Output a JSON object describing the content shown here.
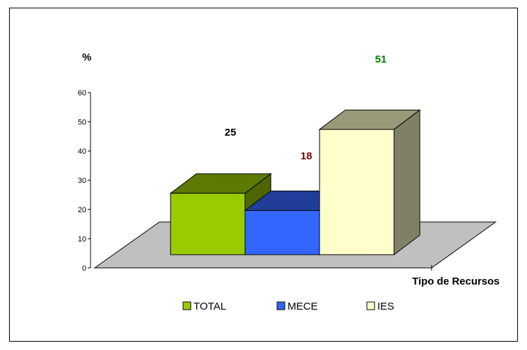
{
  "chart_data": {
    "type": "bar",
    "style": "3d",
    "categories": [
      "TOTAL",
      "MECE",
      "IES"
    ],
    "values": [
      25,
      18,
      51
    ],
    "ylabel": "%",
    "xlabel": "Tipo de Recursos",
    "ylim": [
      0,
      60
    ],
    "yticks": [
      "0",
      "10",
      "20",
      "30",
      "40",
      "50",
      "60"
    ],
    "data_labels": [
      "25",
      "18",
      "51"
    ],
    "legend": [
      "TOTAL",
      "MECE",
      "IES"
    ],
    "legend_position": "bottom",
    "colors": {
      "TOTAL": "#99cc00",
      "MECE": "#3366ff",
      "IES": "#ffffcc",
      "label_TOTAL": "#000000",
      "label_MECE": "#800000",
      "label_IES": "#008000",
      "floor": "#c0c0c0"
    },
    "grid": false
  }
}
